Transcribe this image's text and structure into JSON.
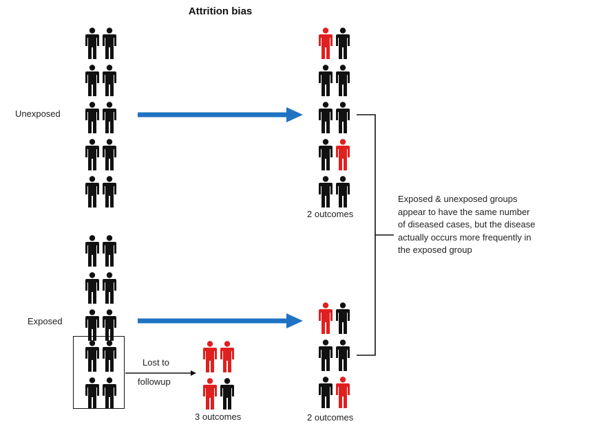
{
  "title": "Attrition bias",
  "labels": {
    "unexposed": "Unexposed",
    "exposed": "Exposed",
    "lost_to_followup": [
      "Lost to",
      "followup"
    ],
    "outcomes_unexposed": "2 outcomes",
    "outcomes_exposed": "2 outcomes",
    "outcomes_lost": "3 outcomes"
  },
  "note": "Exposed & unexposed groups appear to have the same number of diseased cases, but the disease actually occurs more frequently in the exposed group",
  "groups": {
    "unexposed_start": [
      [
        0,
        0
      ],
      [
        0,
        0
      ],
      [
        0,
        0
      ],
      [
        0,
        0
      ],
      [
        0,
        0
      ]
    ],
    "exposed_start": [
      [
        0,
        0
      ],
      [
        0,
        0
      ],
      [
        0,
        0
      ]
    ],
    "exposed_lost": [
      [
        0,
        0
      ],
      [
        0,
        0
      ]
    ],
    "unexposed_end": [
      [
        1,
        0
      ],
      [
        0,
        0
      ],
      [
        0,
        0
      ],
      [
        0,
        1
      ],
      [
        0,
        0
      ]
    ],
    "exposed_end": [
      [
        1,
        0
      ],
      [
        0,
        0
      ],
      [
        0,
        1
      ]
    ],
    "lost_outcomes": [
      [
        1,
        1
      ],
      [
        1,
        0
      ]
    ]
  },
  "colors": {
    "arrow": "#1f73c2",
    "diseased": "#e0201f",
    "healthy": "#111111"
  }
}
